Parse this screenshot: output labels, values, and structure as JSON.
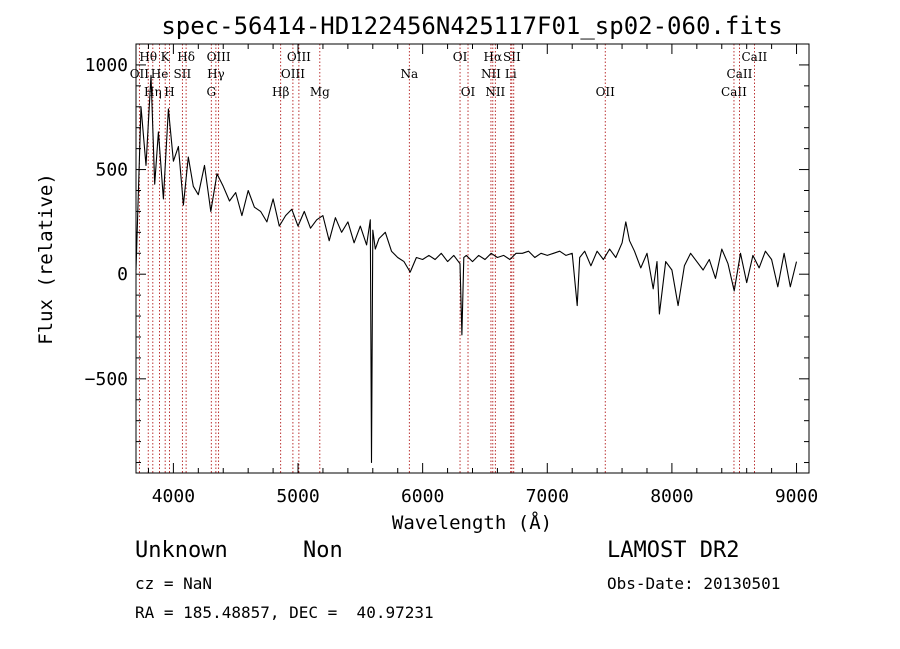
{
  "chart_data": {
    "type": "line",
    "title": "spec-56414-HD122456N425117F01_sp02-060.fits",
    "xlabel": "Wavelength (Å)",
    "ylabel": "Flux (relative)",
    "xlim": [
      3700,
      9100
    ],
    "ylim": [
      -950,
      1100
    ],
    "xticks": [
      4000,
      5000,
      6000,
      7000,
      8000,
      9000
    ],
    "yticks": [
      1000,
      500,
      0,
      -500
    ],
    "ytick_labels": [
      "1000",
      "500",
      "0",
      "−500"
    ],
    "line_color": "#000000",
    "marker_color": "#aa0000",
    "series": [
      {
        "x": [
          3700,
          3740,
          3780,
          3820,
          3850,
          3880,
          3920,
          3960,
          4000,
          4040,
          4080,
          4120,
          4160,
          4200,
          4250,
          4300,
          4350,
          4400,
          4450,
          4500,
          4550,
          4600,
          4650,
          4700,
          4750,
          4800,
          4850,
          4900,
          4950,
          5000,
          5050,
          5100,
          5150,
          5200,
          5250,
          5300,
          5350,
          5400,
          5450,
          5500,
          5550,
          5580,
          5590,
          5600,
          5620,
          5650,
          5700,
          5750,
          5800,
          5850,
          5900,
          5950,
          6000,
          6050,
          6100,
          6150,
          6200,
          6250,
          6300,
          6315,
          6330,
          6350,
          6400,
          6450,
          6500,
          6550,
          6600,
          6650,
          6700,
          6750,
          6800,
          6850,
          6900,
          6950,
          7000,
          7050,
          7100,
          7150,
          7200,
          7240,
          7260,
          7300,
          7350,
          7400,
          7450,
          7500,
          7550,
          7600,
          7630,
          7660,
          7700,
          7750,
          7800,
          7850,
          7880,
          7900,
          7950,
          8000,
          8050,
          8100,
          8150,
          8200,
          8250,
          8300,
          8350,
          8400,
          8450,
          8500,
          8550,
          8600,
          8650,
          8700,
          8750,
          8800,
          8850,
          8900,
          8950,
          9000
        ],
        "y": [
          20,
          800,
          520,
          950,
          430,
          680,
          360,
          790,
          540,
          610,
          330,
          560,
          420,
          380,
          520,
          300,
          480,
          420,
          350,
          390,
          280,
          400,
          320,
          300,
          250,
          360,
          230,
          280,
          310,
          230,
          300,
          220,
          260,
          280,
          160,
          270,
          200,
          250,
          150,
          230,
          140,
          260,
          -900,
          210,
          120,
          170,
          200,
          110,
          80,
          60,
          10,
          80,
          70,
          90,
          70,
          100,
          60,
          90,
          50,
          -290,
          80,
          90,
          60,
          90,
          70,
          100,
          80,
          90,
          70,
          100,
          100,
          110,
          80,
          100,
          90,
          100,
          110,
          90,
          100,
          -150,
          80,
          110,
          40,
          110,
          70,
          120,
          80,
          150,
          250,
          160,
          110,
          30,
          100,
          -70,
          60,
          -190,
          60,
          20,
          -150,
          40,
          100,
          60,
          20,
          70,
          -20,
          120,
          50,
          -80,
          100,
          -40,
          90,
          30,
          110,
          70,
          -60,
          100,
          -60,
          60
        ]
      }
    ],
    "line_markers": [
      {
        "wl": 3727,
        "label": "OII",
        "row": 2
      },
      {
        "wl": 3798,
        "label": "Hθ",
        "row": 1
      },
      {
        "wl": 3835,
        "label": "Hη",
        "row": 3
      },
      {
        "wl": 3889,
        "label": "He",
        "row": 2
      },
      {
        "wl": 3934,
        "label": "K",
        "row": 1
      },
      {
        "wl": 3969,
        "label": "H",
        "row": 3
      },
      {
        "wl": 4072,
        "label": "SII",
        "row": 2
      },
      {
        "wl": 4102,
        "label": "Hδ",
        "row": 1
      },
      {
        "wl": 4304,
        "label": "G",
        "row": 3
      },
      {
        "wl": 4341,
        "label": "Hγ",
        "row": 2
      },
      {
        "wl": 4363,
        "label": "OIII",
        "row": 1
      },
      {
        "wl": 4861,
        "label": "Hβ",
        "row": 3
      },
      {
        "wl": 4959,
        "label": "OIII",
        "row": 2
      },
      {
        "wl": 5007,
        "label": "OIII",
        "row": 1
      },
      {
        "wl": 5175,
        "label": "Mg",
        "row": 3
      },
      {
        "wl": 5893,
        "label": "Na",
        "row": 2
      },
      {
        "wl": 6300,
        "label": "OI",
        "row": 1
      },
      {
        "wl": 6364,
        "label": "OI",
        "row": 3
      },
      {
        "wl": 6548,
        "label": "NII",
        "row": 2
      },
      {
        "wl": 6563,
        "label": "Hα",
        "row": 1
      },
      {
        "wl": 6583,
        "label": "NII",
        "row": 3
      },
      {
        "wl": 6707,
        "label": "Li",
        "row": 2
      },
      {
        "wl": 6716,
        "label": "SII",
        "row": 1
      },
      {
        "wl": 6731,
        "label": "",
        "row": 0
      },
      {
        "wl": 7465,
        "label": "OII",
        "row": 3
      },
      {
        "wl": 8498,
        "label": "CaII",
        "row": 3
      },
      {
        "wl": 8542,
        "label": "CaII",
        "row": 2
      },
      {
        "wl": 8662,
        "label": "CaII",
        "row": 1
      }
    ]
  },
  "info": {
    "class_label": "Unknown",
    "subclass_label": "Non",
    "cz": "cz = NaN",
    "radec": "RA = 185.48857, DEC =  40.97231",
    "survey": "LAMOST DR2",
    "obs_date": "Obs-Date: 20130501"
  }
}
